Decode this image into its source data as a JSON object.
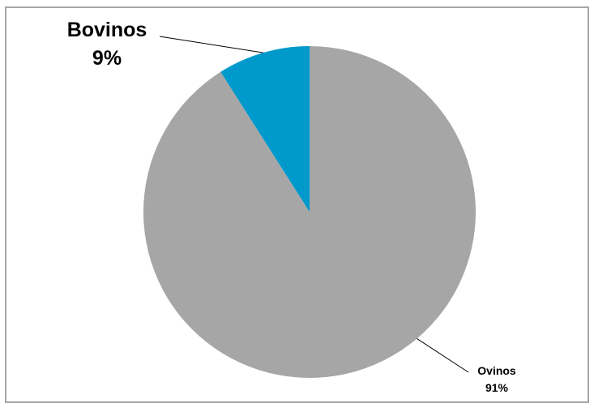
{
  "chart_data": {
    "type": "pie",
    "title": "",
    "slices": [
      {
        "label": "Bovinos",
        "percent_label": "9%",
        "value": 9,
        "color": "#0099cc"
      },
      {
        "label": "Ovinos",
        "percent_label": "91%",
        "value": 91,
        "color": "#a6a6a6"
      }
    ],
    "start_angle_deg": 0,
    "direction": "counterclockwise",
    "legend": "none",
    "label_style": "outside-with-leader-lines"
  }
}
